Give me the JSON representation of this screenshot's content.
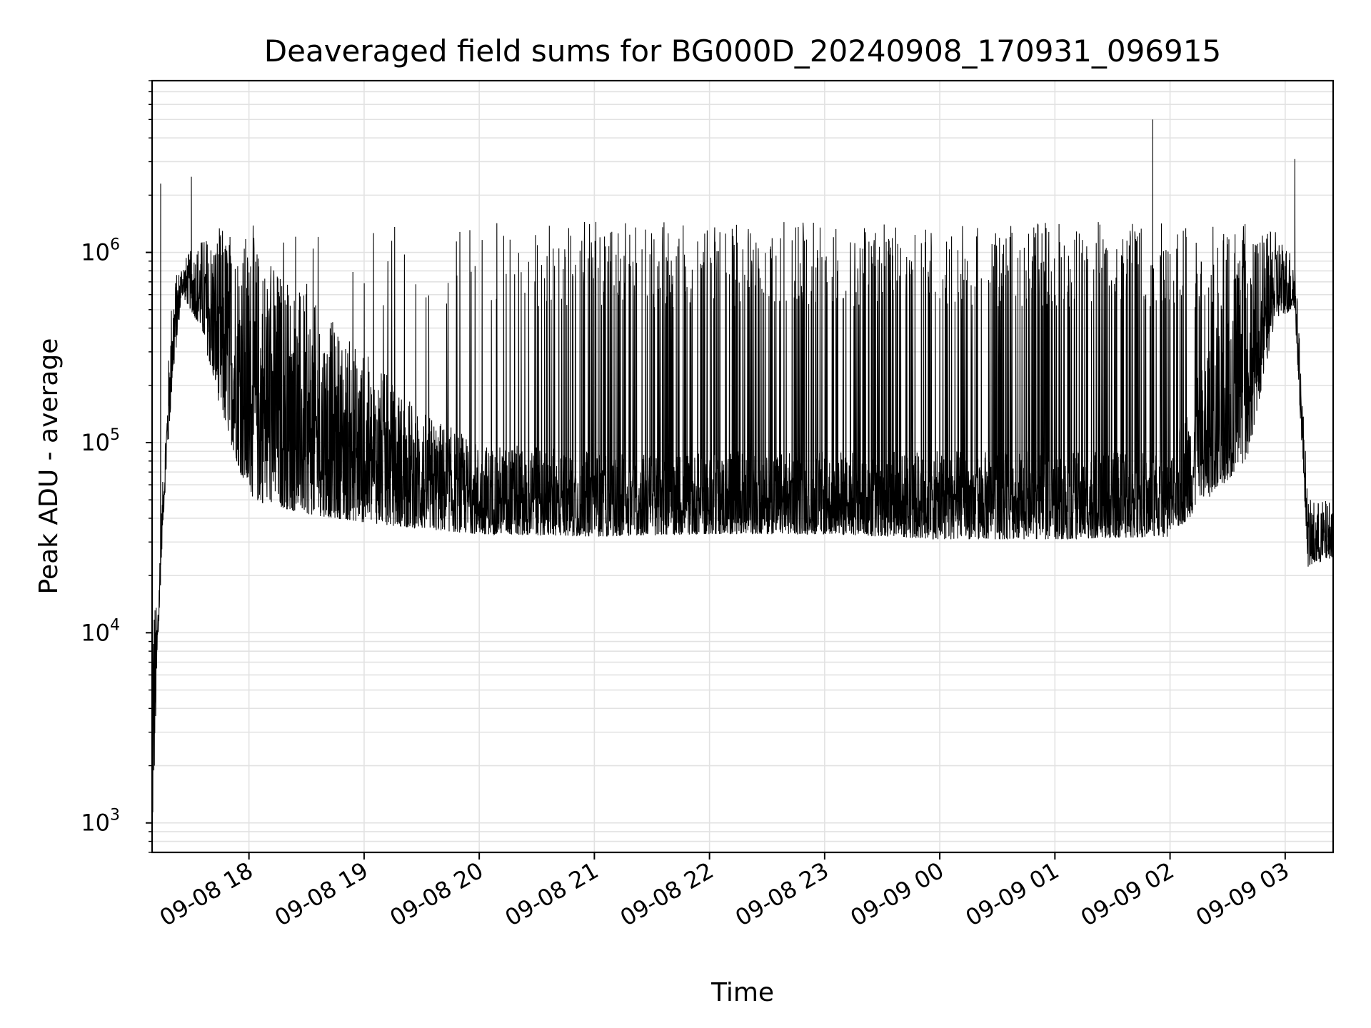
{
  "chart_data": {
    "type": "line",
    "title": "Deaveraged field sums for BG000D_20240908_170931_096915",
    "xlabel": "Time",
    "ylabel": "Peak ADU - average",
    "y_scale": "log",
    "ylim": [
      700,
      8000000
    ],
    "xlim": [
      "2024-09-08T17:09:31",
      "2024-09-09T03:25:00"
    ],
    "grid": true,
    "line_color": "#000000",
    "x_ticks": [
      {
        "time": "2024-09-08T18:00:00",
        "label": "09-08 18"
      },
      {
        "time": "2024-09-08T19:00:00",
        "label": "09-08 19"
      },
      {
        "time": "2024-09-08T20:00:00",
        "label": "09-08 20"
      },
      {
        "time": "2024-09-08T21:00:00",
        "label": "09-08 21"
      },
      {
        "time": "2024-09-08T22:00:00",
        "label": "09-08 22"
      },
      {
        "time": "2024-09-08T23:00:00",
        "label": "09-08 23"
      },
      {
        "time": "2024-09-09T00:00:00",
        "label": "09-09 00"
      },
      {
        "time": "2024-09-09T01:00:00",
        "label": "09-09 01"
      },
      {
        "time": "2024-09-09T02:00:00",
        "label": "09-09 02"
      },
      {
        "time": "2024-09-09T03:00:00",
        "label": "09-09 03"
      }
    ],
    "y_ticks": [
      {
        "value": 1000,
        "mantissa": "10",
        "exponent": "3"
      },
      {
        "value": 10000,
        "mantissa": "10",
        "exponent": "4"
      },
      {
        "value": 100000,
        "mantissa": "10",
        "exponent": "5"
      },
      {
        "value": 1000000,
        "mantissa": "10",
        "exponent": "6"
      }
    ],
    "series": [
      {
        "envelope": [
          {
            "time": "2024-09-08T17:09:31",
            "low": 700,
            "high": 25000
          },
          {
            "time": "2024-09-08T17:12:00",
            "low": 5500,
            "high": 13000
          },
          {
            "time": "2024-09-08T17:15:00",
            "low": 35000,
            "high": 60000
          },
          {
            "time": "2024-09-08T17:20:00",
            "low": 200000,
            "high": 700000
          },
          {
            "time": "2024-09-08T17:25:00",
            "low": 600000,
            "high": 900000
          },
          {
            "time": "2024-09-08T17:35:00",
            "low": 400000,
            "high": 1200000
          },
          {
            "time": "2024-09-08T17:45:00",
            "low": 150000,
            "high": 1400000
          },
          {
            "time": "2024-09-08T18:00:00",
            "low": 50000,
            "high": 1300000
          },
          {
            "time": "2024-09-08T18:30:00",
            "low": 42000,
            "high": 600000
          },
          {
            "time": "2024-09-08T19:00:00",
            "low": 38000,
            "high": 300000
          },
          {
            "time": "2024-09-08T19:30:00",
            "low": 35000,
            "high": 150000
          },
          {
            "time": "2024-09-08T20:00:00",
            "low": 33000,
            "high": 100000
          },
          {
            "time": "2024-09-08T21:00:00",
            "low": 32000,
            "high": 90000
          },
          {
            "time": "2024-09-08T22:00:00",
            "low": 33000,
            "high": 90000
          },
          {
            "time": "2024-09-08T23:00:00",
            "low": 33000,
            "high": 90000
          },
          {
            "time": "2024-09-09T00:00:00",
            "low": 31000,
            "high": 90000
          },
          {
            "time": "2024-09-09T01:00:00",
            "low": 31000,
            "high": 90000
          },
          {
            "time": "2024-09-09T02:00:00",
            "low": 32000,
            "high": 90000
          },
          {
            "time": "2024-09-09T02:40:00",
            "low": 80000,
            "high": 1200000
          },
          {
            "time": "2024-09-09T02:55:00",
            "low": 450000,
            "high": 1300000
          },
          {
            "time": "2024-09-09T03:05:00",
            "low": 500000,
            "high": 1000000
          },
          {
            "time": "2024-09-09T03:12:00",
            "low": 22000,
            "high": 50000
          },
          {
            "time": "2024-09-09T03:25:00",
            "low": 25000,
            "high": 50000
          }
        ],
        "spike_rate_per_hour": [
          {
            "time": "2024-09-08T18:00:00",
            "rate": 10
          },
          {
            "time": "2024-09-08T19:00:00",
            "rate": 12
          },
          {
            "time": "2024-09-08T20:00:00",
            "rate": 25
          },
          {
            "time": "2024-09-08T21:00:00",
            "rate": 90
          },
          {
            "time": "2024-09-09T02:40:00",
            "rate": 90
          }
        ],
        "spike_peak": 1450000,
        "peaks": [
          {
            "time": "2024-09-08T17:14:00",
            "value": 2300000
          },
          {
            "time": "2024-09-08T17:30:00",
            "value": 2500000
          },
          {
            "time": "2024-09-09T01:51:00",
            "value": 5000000
          },
          {
            "time": "2024-09-09T03:05:00",
            "value": 3100000
          }
        ]
      }
    ]
  }
}
